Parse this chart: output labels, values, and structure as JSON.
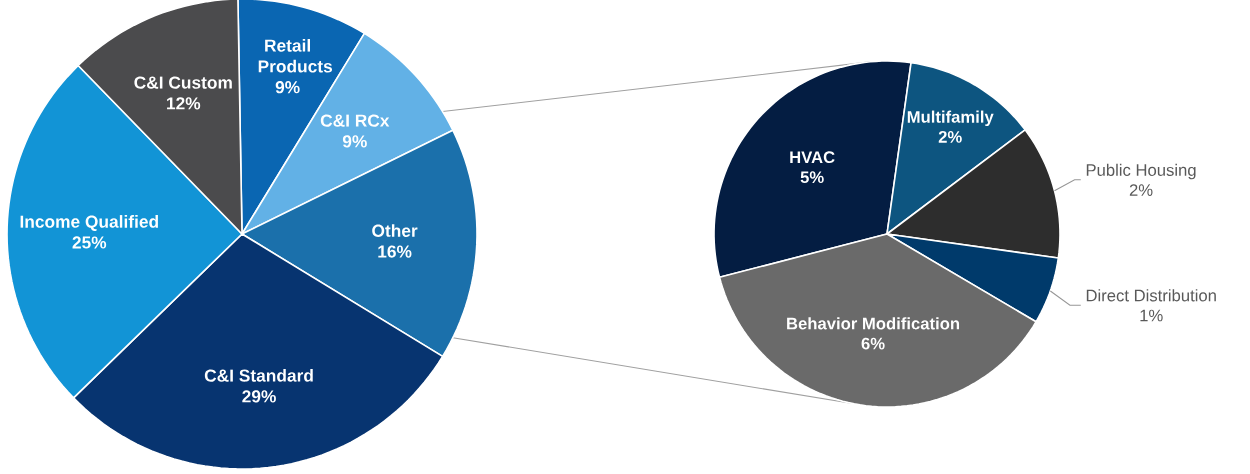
{
  "chart_data": [
    {
      "type": "pie",
      "categories": [
        "Retail Products",
        "C&I RCx",
        "Other",
        "C&I Standard",
        "Income Qualified",
        "C&I Custom"
      ],
      "values": [
        9,
        9,
        16,
        29,
        25,
        12
      ],
      "colors": [
        "#0a66b2",
        "#62b1e6",
        "#1b70ab",
        "#073470",
        "#1294d6",
        "#4b4b4d"
      ],
      "value_labels": [
        "9%",
        "9%",
        "16%",
        "29%",
        "25%",
        "12%"
      ]
    },
    {
      "type": "pie",
      "categories": [
        "HVAC",
        "Multifamily",
        "Public Housing",
        "Direct Distribution",
        "Behavior Modification"
      ],
      "values": [
        5,
        2,
        2,
        1,
        6
      ],
      "colors": [
        "#041d42",
        "#0d5580",
        "#2d2d2d",
        "#003a6b",
        "#6a6a6a"
      ],
      "value_labels": [
        "5%",
        "2%",
        "2%",
        "1%",
        "6%"
      ]
    }
  ]
}
